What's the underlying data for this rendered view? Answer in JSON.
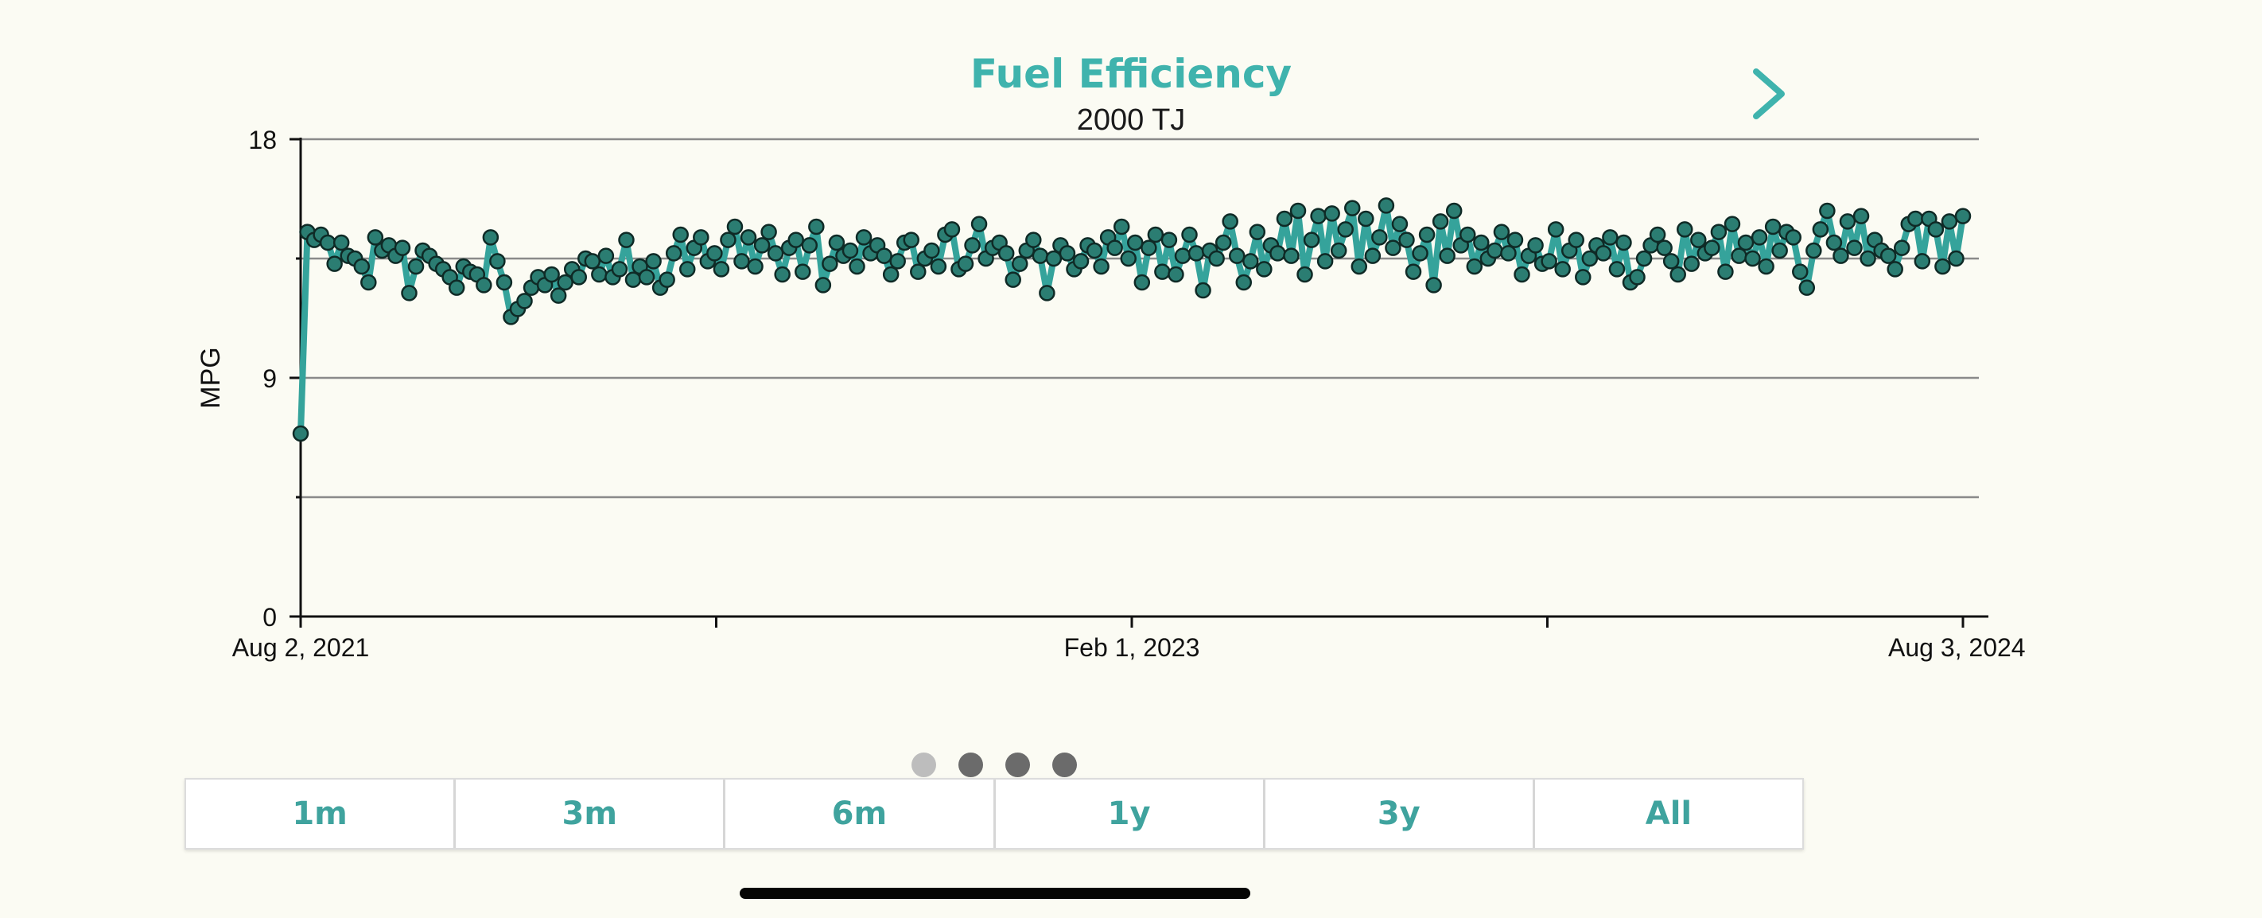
{
  "header": {
    "title": "Fuel Efficiency",
    "subtitle": "2000 TJ",
    "next_icon": "chevron-right-icon"
  },
  "chart_data": {
    "type": "line",
    "title": "Fuel Efficiency",
    "subtitle": "2000 TJ",
    "xlabel": "",
    "ylabel": "MPG",
    "ylim": [
      0,
      18
    ],
    "yticks": [
      0,
      9,
      18
    ],
    "ytick_labels": [
      "0",
      "9",
      "18"
    ],
    "x_tick_labels": [
      "Aug 2, 2021",
      "Feb 1, 2023",
      "Aug 3, 2024"
    ],
    "grid": true,
    "marker": "circle",
    "line_color": "#35a39b",
    "marker_color": "#2b7d72",
    "series": [
      {
        "name": "MPG",
        "values": [
          6.9,
          14.5,
          14.2,
          14.4,
          14.1,
          13.3,
          14.1,
          13.6,
          13.5,
          13.2,
          12.6,
          14.3,
          13.8,
          14.0,
          13.6,
          13.9,
          12.2,
          13.2,
          13.8,
          13.6,
          13.3,
          13.1,
          12.8,
          12.4,
          13.2,
          13.0,
          12.9,
          12.5,
          14.3,
          13.4,
          12.6,
          11.3,
          11.6,
          11.9,
          12.4,
          12.8,
          12.5,
          12.9,
          12.1,
          12.6,
          13.1,
          12.8,
          13.5,
          13.4,
          12.9,
          13.6,
          12.8,
          13.1,
          14.2,
          12.7,
          13.2,
          12.8,
          13.4,
          12.4,
          12.7,
          13.7,
          14.4,
          13.1,
          13.9,
          14.3,
          13.4,
          13.7,
          13.1,
          14.2,
          14.7,
          13.4,
          14.3,
          13.2,
          14.0,
          14.5,
          13.7,
          12.9,
          13.9,
          14.2,
          13.0,
          14.0,
          14.7,
          12.5,
          13.3,
          14.1,
          13.6,
          13.8,
          13.2,
          14.3,
          13.7,
          14.0,
          13.6,
          12.9,
          13.4,
          14.1,
          14.2,
          13.0,
          13.5,
          13.8,
          13.2,
          14.4,
          14.6,
          13.1,
          13.3,
          14.0,
          14.8,
          13.5,
          13.9,
          14.1,
          13.7,
          12.7,
          13.3,
          13.8,
          14.2,
          13.6,
          12.2,
          13.5,
          14.0,
          13.7,
          13.1,
          13.4,
          14.0,
          13.8,
          13.2,
          14.3,
          13.9,
          14.7,
          13.5,
          14.1,
          12.6,
          13.9,
          14.4,
          13.0,
          14.2,
          12.9,
          13.6,
          14.4,
          13.7,
          12.3,
          13.8,
          13.5,
          14.1,
          14.9,
          13.6,
          12.6,
          13.4,
          14.5,
          13.1,
          14.0,
          13.7,
          15.0,
          13.6,
          15.3,
          12.9,
          14.2,
          15.1,
          13.4,
          15.2,
          13.8,
          14.6,
          15.4,
          13.2,
          15.0,
          13.6,
          14.3,
          15.5,
          13.9,
          14.8,
          14.2,
          13.0,
          13.7,
          14.4,
          12.5,
          14.9,
          13.6,
          15.3,
          14.0,
          14.4,
          13.2,
          14.1,
          13.5,
          13.8,
          14.5,
          13.7,
          14.2,
          12.9,
          13.6,
          14.0,
          13.3,
          13.4,
          14.6,
          13.1,
          13.8,
          14.2,
          12.8,
          13.5,
          14.0,
          13.7,
          14.3,
          13.1,
          14.1,
          12.6,
          12.8,
          13.5,
          14.0,
          14.4,
          13.9,
          13.4,
          12.9,
          14.6,
          13.3,
          14.2,
          13.7,
          13.9,
          14.5,
          13.0,
          14.8,
          13.6,
          14.1,
          13.5,
          14.3,
          13.2,
          14.7,
          13.8,
          14.5,
          14.3,
          13.0,
          12.4,
          13.8,
          14.6,
          15.3,
          14.1,
          13.6,
          14.9,
          13.9,
          15.1,
          13.5,
          14.2,
          13.8,
          13.6,
          13.1,
          13.9,
          14.8,
          15.0,
          13.4,
          15.0,
          14.6,
          13.2,
          14.9,
          13.5,
          15.1
        ]
      }
    ]
  },
  "pager": {
    "pages": [
      "1",
      "2",
      "3",
      "4"
    ],
    "active_index": 0
  },
  "ranges": {
    "options": [
      "1m",
      "3m",
      "6m",
      "1y",
      "3y",
      "All"
    ]
  }
}
